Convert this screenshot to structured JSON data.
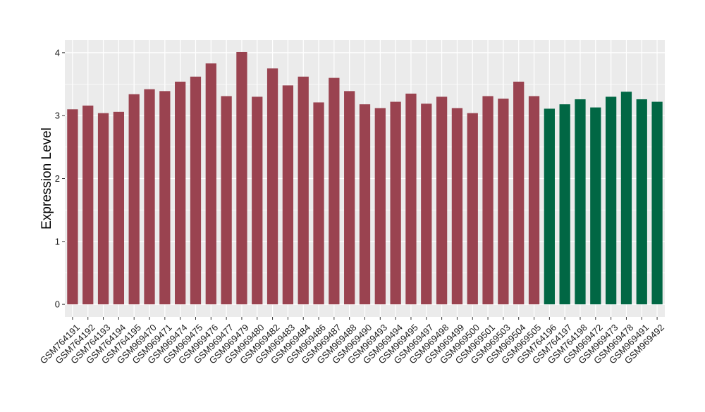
{
  "colors": {
    "panel_background": "#ebebeb",
    "gridline": "#ffffff",
    "group_1": "#9a4350",
    "group_2": "#016744",
    "axis_text": "#1a1a1a"
  },
  "chart_data": {
    "type": "bar",
    "ylabel": "Expression Level",
    "xlabel": "",
    "ylim": [
      -0.2,
      4.2
    ],
    "yticks": [
      0,
      1,
      2,
      3,
      4
    ],
    "grid": true,
    "legend": "none",
    "categories": [
      "GSM764191",
      "GSM764192",
      "GSM764193",
      "GSM764194",
      "GSM764195",
      "GSM969470",
      "GSM969471",
      "GSM969474",
      "GSM969475",
      "GSM969476",
      "GSM969477",
      "GSM969479",
      "GSM969480",
      "GSM969482",
      "GSM969483",
      "GSM969484",
      "GSM969486",
      "GSM969487",
      "GSM969488",
      "GSM969490",
      "GSM969493",
      "GSM969494",
      "GSM969495",
      "GSM969497",
      "GSM969498",
      "GSM969499",
      "GSM969500",
      "GSM969501",
      "GSM969503",
      "GSM969504",
      "GSM969505",
      "GSM764196",
      "GSM764197",
      "GSM764198",
      "GSM969472",
      "GSM969473",
      "GSM969478",
      "GSM969491",
      "GSM969492"
    ],
    "values": [
      3.1,
      3.16,
      3.04,
      3.06,
      3.34,
      3.42,
      3.39,
      3.54,
      3.62,
      3.83,
      3.31,
      4.01,
      3.3,
      3.75,
      3.48,
      3.62,
      3.21,
      3.6,
      3.39,
      3.18,
      3.12,
      3.22,
      3.35,
      3.19,
      3.3,
      3.12,
      3.04,
      3.31,
      3.27,
      3.54,
      3.31,
      3.11,
      3.18,
      3.26,
      3.13,
      3.3,
      3.38,
      3.26,
      3.22
    ],
    "groups": [
      1,
      1,
      1,
      1,
      1,
      1,
      1,
      1,
      1,
      1,
      1,
      1,
      1,
      1,
      1,
      1,
      1,
      1,
      1,
      1,
      1,
      1,
      1,
      1,
      1,
      1,
      1,
      1,
      1,
      1,
      1,
      2,
      2,
      2,
      2,
      2,
      2,
      2,
      2
    ]
  }
}
